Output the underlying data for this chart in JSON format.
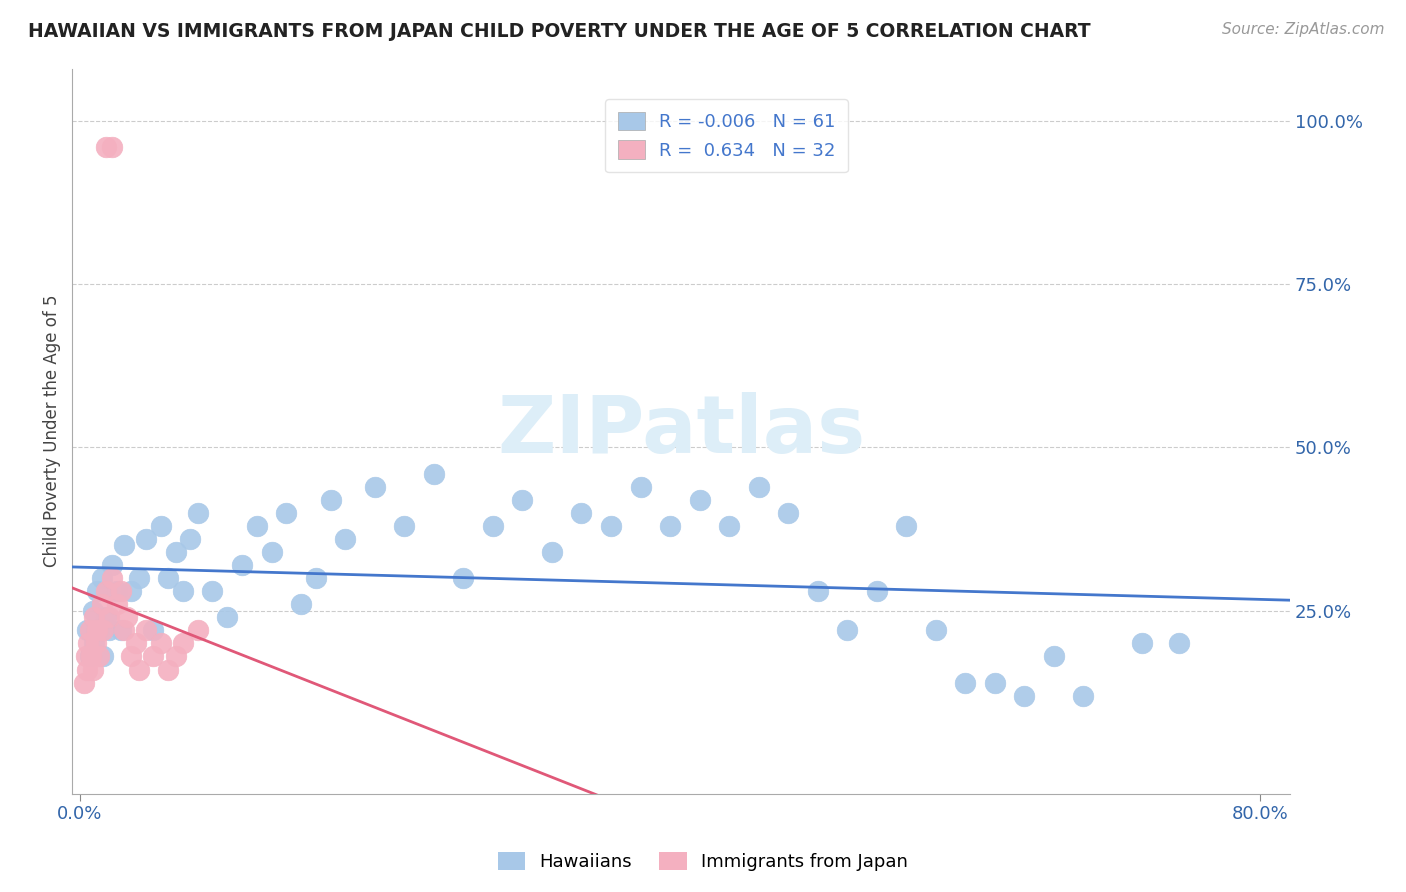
{
  "title": "HAWAIIAN VS IMMIGRANTS FROM JAPAN CHILD POVERTY UNDER THE AGE OF 5 CORRELATION CHART",
  "source": "Source: ZipAtlas.com",
  "ylabel": "Child Poverty Under the Age of 5",
  "xlim": [
    -0.005,
    0.82
  ],
  "ylim": [
    -0.03,
    1.08
  ],
  "hawaiian_color": "#a8c8e8",
  "japan_color": "#f4b0c0",
  "hawaiian_R": -0.006,
  "hawaiian_N": 61,
  "japan_R": 0.634,
  "japan_N": 32,
  "hawaiian_line_color": "#4477cc",
  "japan_line_color": "#e05878",
  "legend_R_color": "#e05878",
  "watermark_color": "#ddeef8",
  "hawaiian_x": [
    0.005,
    0.007,
    0.009,
    0.01,
    0.012,
    0.013,
    0.015,
    0.016,
    0.018,
    0.02,
    0.022,
    0.025,
    0.028,
    0.03,
    0.035,
    0.04,
    0.045,
    0.05,
    0.055,
    0.06,
    0.065,
    0.07,
    0.075,
    0.08,
    0.09,
    0.1,
    0.11,
    0.12,
    0.13,
    0.14,
    0.15,
    0.16,
    0.17,
    0.18,
    0.2,
    0.22,
    0.24,
    0.26,
    0.28,
    0.3,
    0.32,
    0.34,
    0.36,
    0.38,
    0.4,
    0.42,
    0.44,
    0.46,
    0.48,
    0.5,
    0.52,
    0.54,
    0.56,
    0.58,
    0.6,
    0.62,
    0.64,
    0.66,
    0.68,
    0.72,
    0.745
  ],
  "hawaiian_y": [
    0.22,
    0.18,
    0.25,
    0.2,
    0.28,
    0.22,
    0.3,
    0.18,
    0.24,
    0.22,
    0.32,
    0.28,
    0.22,
    0.35,
    0.28,
    0.3,
    0.36,
    0.22,
    0.38,
    0.3,
    0.34,
    0.28,
    0.36,
    0.4,
    0.28,
    0.24,
    0.32,
    0.38,
    0.34,
    0.4,
    0.26,
    0.3,
    0.42,
    0.36,
    0.44,
    0.38,
    0.46,
    0.3,
    0.38,
    0.42,
    0.34,
    0.4,
    0.38,
    0.44,
    0.38,
    0.42,
    0.38,
    0.44,
    0.4,
    0.28,
    0.22,
    0.28,
    0.38,
    0.22,
    0.14,
    0.14,
    0.12,
    0.18,
    0.12,
    0.2,
    0.2
  ],
  "japan_x": [
    0.003,
    0.004,
    0.005,
    0.006,
    0.007,
    0.008,
    0.009,
    0.01,
    0.011,
    0.012,
    0.013,
    0.015,
    0.016,
    0.018,
    0.02,
    0.022,
    0.025,
    0.028,
    0.03,
    0.032,
    0.035,
    0.038,
    0.04,
    0.045,
    0.05,
    0.055,
    0.06,
    0.065,
    0.07,
    0.08,
    0.018,
    0.022
  ],
  "japan_y": [
    0.14,
    0.18,
    0.16,
    0.2,
    0.22,
    0.18,
    0.16,
    0.24,
    0.2,
    0.22,
    0.18,
    0.26,
    0.22,
    0.28,
    0.24,
    0.3,
    0.26,
    0.28,
    0.22,
    0.24,
    0.18,
    0.2,
    0.16,
    0.22,
    0.18,
    0.2,
    0.16,
    0.18,
    0.2,
    0.22,
    0.96,
    0.96
  ]
}
